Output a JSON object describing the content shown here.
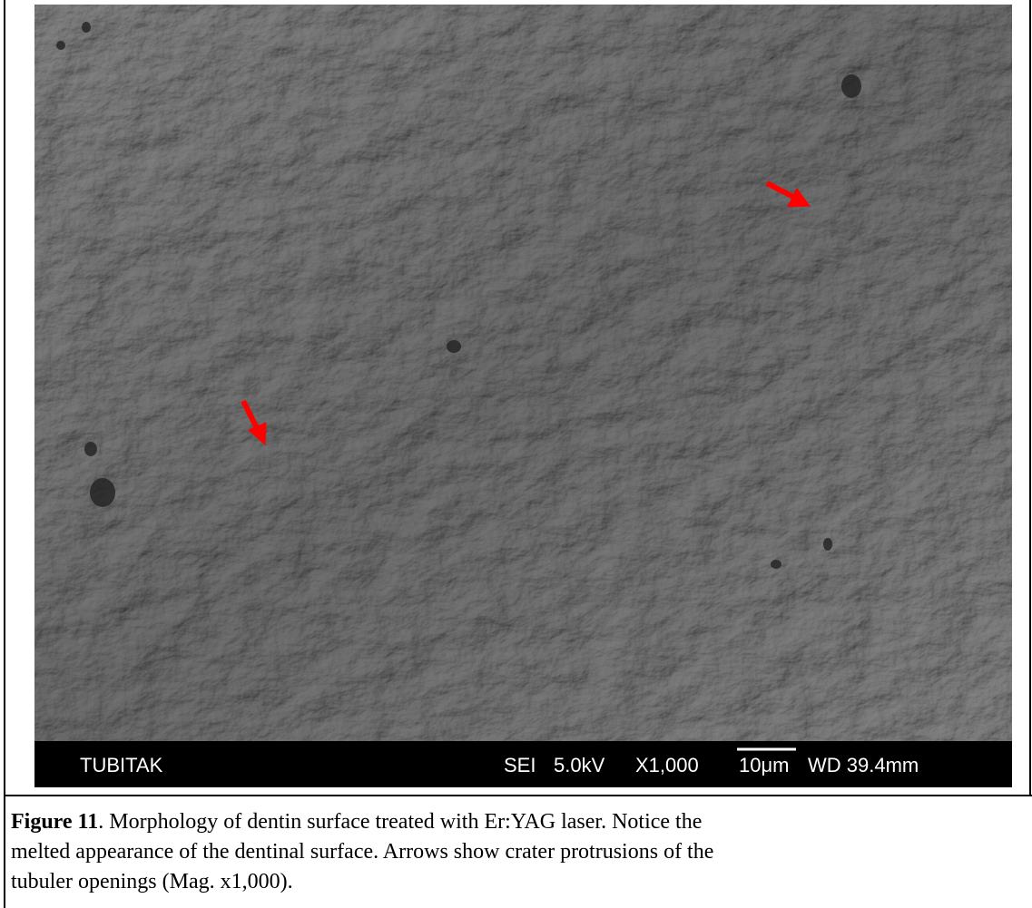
{
  "image": {
    "info_bar": [
      "TUBITAK",
      "SEI",
      "5.0kV",
      "X1,000",
      "10μm",
      "WD 39.4mm"
    ]
  },
  "caption": {
    "label": "Figure 11",
    "lines": [
      ". Morphology of dentin surface treated with Er:YAG laser. Notice the",
      "melted appearance of the dentinal surface. Arrows show crater protrusions of the",
      "tubuler openings (Mag. x1,000)."
    ]
  }
}
